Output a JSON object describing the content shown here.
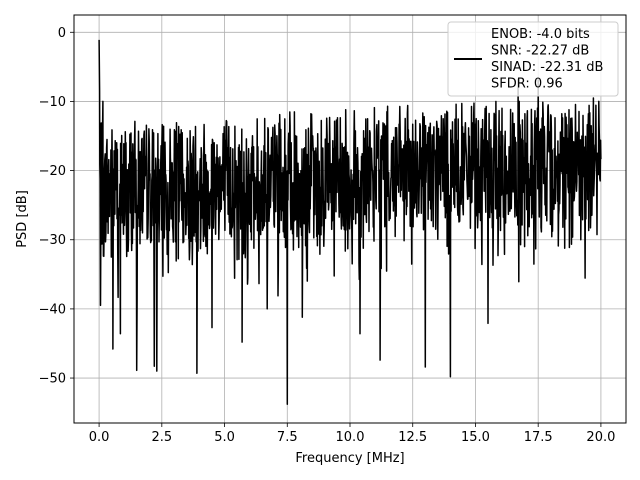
{
  "chart_data": {
    "type": "line",
    "xlabel": "Frequency [MHz]",
    "ylabel": "PSD [dB]",
    "xlim": [
      -1.0,
      21.0
    ],
    "ylim": [
      -56.5,
      2.5
    ],
    "x_ticks": [
      0.0,
      2.5,
      5.0,
      7.5,
      10.0,
      12.5,
      15.0,
      17.5,
      20.0
    ],
    "x_tick_labels": [
      "0.0",
      "2.5",
      "5.0",
      "7.5",
      "10.0",
      "12.5",
      "15.0",
      "17.5",
      "20.0"
    ],
    "y_ticks": [
      0,
      -10,
      -20,
      -30,
      -40,
      -50
    ],
    "y_tick_labels": [
      "0",
      "−10",
      "−20",
      "−30",
      "−40",
      "−50"
    ],
    "grid": true,
    "legend_position": "top-right",
    "legend_lines": [
      "ENOB: -4.0 bits",
      "SNR: -22.27 dB",
      "SINAD: -22.31 dB",
      "SFDR: 0.96"
    ],
    "series": [
      {
        "color": "#000000",
        "x_range": [
          0.0,
          20.0
        ],
        "baseline_start_db": -22,
        "baseline_end_db": -18,
        "upper_envelope_db": -12,
        "lower_envelope_db": -36,
        "peaks": [
          {
            "x": 0.0,
            "y": -1.1
          },
          {
            "x": 0.02,
            "y": -8.5
          },
          {
            "x": 0.15,
            "y": -10.0
          },
          {
            "x": 16.7,
            "y": -6.8
          },
          {
            "x": 17.5,
            "y": -6.9
          },
          {
            "x": 19.7,
            "y": -9.5
          }
        ],
        "dips": [
          {
            "x": 0.55,
            "y": -45.8
          },
          {
            "x": 0.85,
            "y": -43.6
          },
          {
            "x": 1.5,
            "y": -48.9
          },
          {
            "x": 2.2,
            "y": -48.3
          },
          {
            "x": 2.3,
            "y": -49.0
          },
          {
            "x": 3.9,
            "y": -49.3
          },
          {
            "x": 4.5,
            "y": -42.7
          },
          {
            "x": 5.7,
            "y": -44.8
          },
          {
            "x": 6.7,
            "y": -40.0
          },
          {
            "x": 7.5,
            "y": -53.8
          },
          {
            "x": 8.1,
            "y": -41.2
          },
          {
            "x": 10.4,
            "y": -43.6
          },
          {
            "x": 11.2,
            "y": -47.4
          },
          {
            "x": 13.0,
            "y": -48.4
          },
          {
            "x": 14.0,
            "y": -49.8
          },
          {
            "x": 15.5,
            "y": -42.1
          }
        ]
      }
    ]
  }
}
